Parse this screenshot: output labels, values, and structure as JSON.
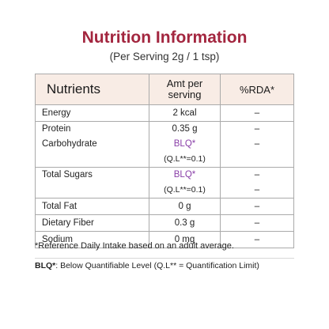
{
  "header": {
    "title": "Nutrition Information",
    "subtitle": "(Per Serving 2g / 1 tsp)"
  },
  "table": {
    "headers": {
      "nutrients": "Nutrients",
      "amt_line1": "Amt per",
      "amt_line2": "serving",
      "rda": "%RDA*"
    },
    "rows": [
      {
        "name": "Energy",
        "amount": "2 kcal",
        "rda": "–"
      },
      {
        "name": "Protein",
        "amount": "0.35 g",
        "rda": "–"
      },
      {
        "name": "Carbohydrate",
        "amount": "BLQ*",
        "amount_note": "(Q.L**=0.1)",
        "rda": "–"
      },
      {
        "name": "Total Sugars",
        "amount": "BLQ*",
        "amount_note": "(Q.L**=0.1)",
        "rda": "–",
        "rda2": "–"
      },
      {
        "name": "Total Fat",
        "amount": "0 g",
        "rda": "–"
      },
      {
        "name": "Dietary Fiber",
        "amount": "0.3 g",
        "rda": "–"
      },
      {
        "name": "Sodium",
        "amount": "0 mg",
        "rda": "–"
      }
    ]
  },
  "footnotes": {
    "rda_note": "*Reference Daily Intake based on an adult average.",
    "blq_term": "BLQ*",
    "blq_def": ": Below Quantifiable Level (Q.L** = Quantification Limit)"
  },
  "colors": {
    "title": "#a3263f",
    "header_bg": "#f8ece5",
    "blq": "#8a3fa8"
  }
}
